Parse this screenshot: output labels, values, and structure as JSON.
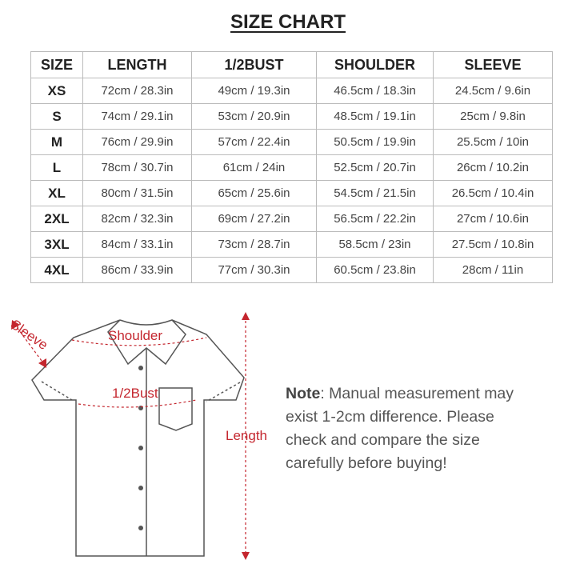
{
  "header": {
    "title": "SIZE CHART"
  },
  "table": {
    "columns": [
      "SIZE",
      "LENGTH",
      "1/2BUST",
      "SHOULDER",
      "SLEEVE"
    ],
    "rows": [
      [
        "XS",
        "72cm / 28.3in",
        "49cm / 19.3in",
        "46.5cm / 18.3in",
        "24.5cm / 9.6in"
      ],
      [
        "S",
        "74cm / 29.1in",
        "53cm / 20.9in",
        "48.5cm / 19.1in",
        "25cm / 9.8in"
      ],
      [
        "M",
        "76cm / 29.9in",
        "57cm / 22.4in",
        "50.5cm / 19.9in",
        "25.5cm / 10in"
      ],
      [
        "L",
        "78cm / 30.7in",
        "61cm / 24in",
        "52.5cm / 20.7in",
        "26cm / 10.2in"
      ],
      [
        "XL",
        "80cm / 31.5in",
        "65cm / 25.6in",
        "54.5cm / 21.5in",
        "26.5cm / 10.4in"
      ],
      [
        "2XL",
        "82cm / 32.3in",
        "69cm / 27.2in",
        "56.5cm / 22.2in",
        "27cm / 10.6in"
      ],
      [
        "3XL",
        "84cm / 33.1in",
        "73cm / 28.7in",
        "58.5cm / 23in",
        "27.5cm / 10.8in"
      ],
      [
        "4XL",
        "86cm / 33.9in",
        "77cm / 30.3in",
        "60.5cm / 23.8in",
        "28cm / 11in"
      ]
    ]
  },
  "diagram": {
    "shoulder": "Shoulder",
    "bust": "1/2Bust",
    "length": "Length",
    "sleeve": "Sleeve"
  },
  "note": {
    "label": "Note",
    "lines": [
      ": Manual measurement may",
      "exist 1-2cm difference. Please",
      "check and compare the size",
      "carefully before buying!"
    ]
  }
}
